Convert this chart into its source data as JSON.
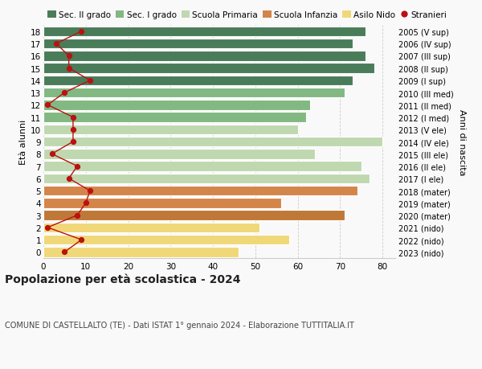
{
  "ages": [
    18,
    17,
    16,
    15,
    14,
    13,
    12,
    11,
    10,
    9,
    8,
    7,
    6,
    5,
    4,
    3,
    2,
    1,
    0
  ],
  "years_labels": [
    "2005 (V sup)",
    "2006 (IV sup)",
    "2007 (III sup)",
    "2008 (II sup)",
    "2009 (I sup)",
    "2010 (III med)",
    "2011 (II med)",
    "2012 (I med)",
    "2013 (V ele)",
    "2014 (IV ele)",
    "2015 (III ele)",
    "2016 (II ele)",
    "2017 (I ele)",
    "2018 (mater)",
    "2019 (mater)",
    "2020 (mater)",
    "2021 (nido)",
    "2022 (nido)",
    "2023 (nido)"
  ],
  "bar_values": [
    76,
    73,
    76,
    78,
    73,
    71,
    63,
    62,
    60,
    80,
    64,
    75,
    77,
    74,
    56,
    71,
    51,
    58,
    46
  ],
  "bar_colors": [
    "#4a7c59",
    "#4a7c59",
    "#4a7c59",
    "#4a7c59",
    "#4a7c59",
    "#82b882",
    "#82b882",
    "#82b882",
    "#c0d8b0",
    "#c0d8b0",
    "#c0d8b0",
    "#c0d8b0",
    "#c0d8b0",
    "#d4854a",
    "#d4854a",
    "#c07838",
    "#f0d878",
    "#f0d878",
    "#f0d878"
  ],
  "stranieri_values": [
    9,
    3,
    6,
    6,
    11,
    5,
    1,
    7,
    7,
    7,
    2,
    8,
    6,
    11,
    10,
    8,
    1,
    9,
    5
  ],
  "legend_labels": [
    "Sec. II grado",
    "Sec. I grado",
    "Scuola Primaria",
    "Scuola Infanzia",
    "Asilo Nido",
    "Stranieri"
  ],
  "legend_colors": [
    "#4a7c59",
    "#82b882",
    "#c0d8b0",
    "#d4854a",
    "#f0d878",
    "#bb1111"
  ],
  "title": "Popolazione per età scolastica - 2024",
  "subtitle": "COMUNE DI CASTELLALTO (TE) - Dati ISTAT 1° gennaio 2024 - Elaborazione TUTTITALIA.IT",
  "ylabel": "Età alunni",
  "ylabel2": "Anni di nascita",
  "xlim": [
    0,
    83
  ],
  "ylim": [
    -0.5,
    18.5
  ],
  "background_color": "#f9f9f9",
  "grid_color": "#cccccc",
  "bar_height": 0.82,
  "stranieri_color": "#bb1111",
  "stranieri_linewidth": 1.0,
  "stranieri_markersize": 18
}
